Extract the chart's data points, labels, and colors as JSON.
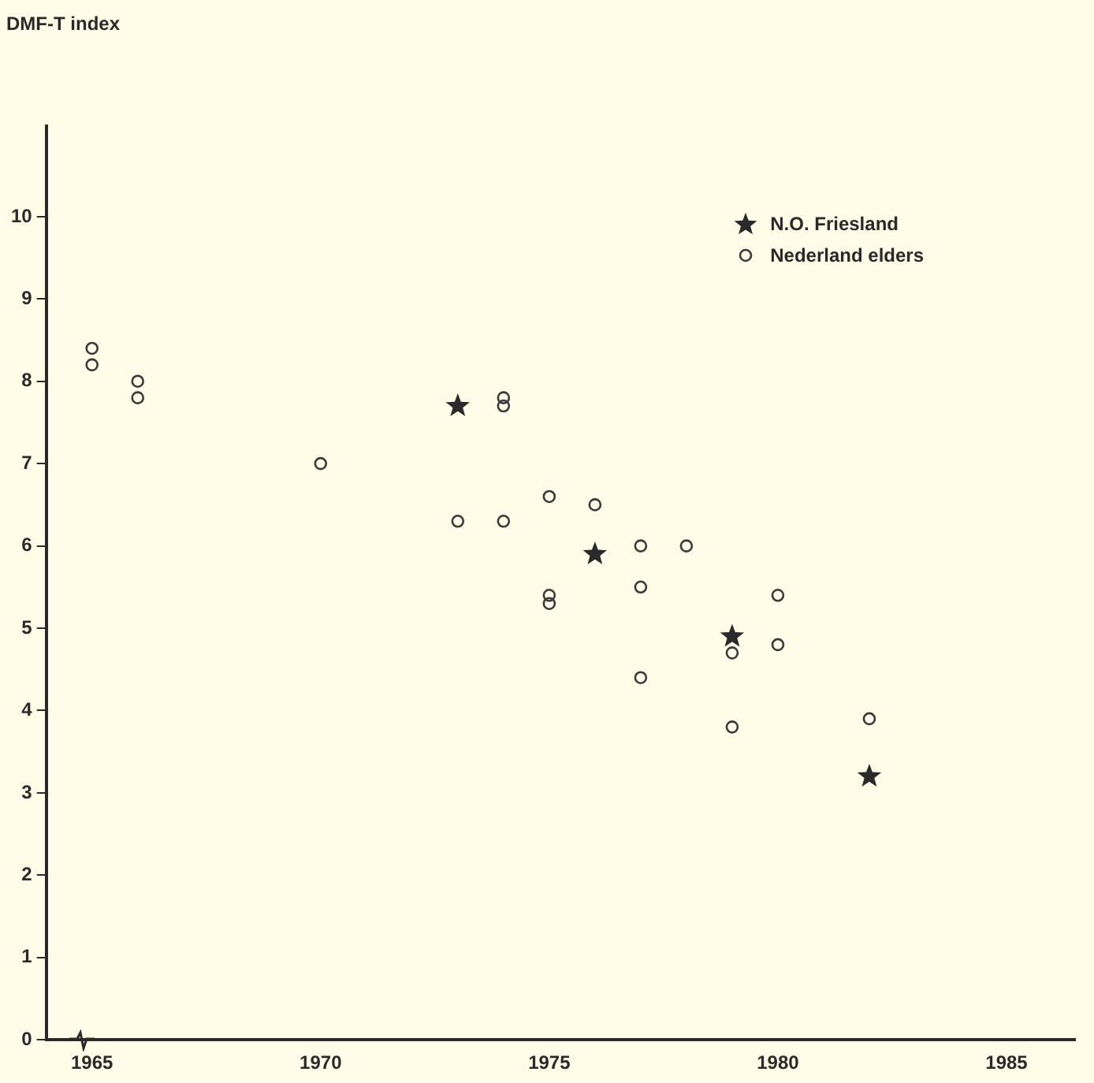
{
  "chart_data": {
    "type": "scatter",
    "ylabel": "DMF-T index",
    "xlim": [
      1964,
      1986.5
    ],
    "xticks": [
      1965,
      1970,
      1975,
      1980,
      1985
    ],
    "ylim": [
      0,
      11.1
    ],
    "yticks": [
      0,
      1,
      2,
      3,
      4,
      5,
      6,
      7,
      8,
      9,
      10
    ],
    "grid": false,
    "legend": "top right",
    "series": [
      {
        "name": "N.O. Friesland",
        "color": "#2a2a2a",
        "marker": "star",
        "x": [
          1973,
          1976,
          1979,
          1982
        ],
        "values": [
          7.7,
          5.9,
          4.9,
          3.2
        ]
      },
      {
        "name": "Nederland elders",
        "color": "#3a3a3a",
        "marker": "circle",
        "x": [
          1965,
          1965,
          1966,
          1966,
          1970,
          1973,
          1974,
          1974,
          1974,
          1975,
          1975,
          1975,
          1976,
          1977,
          1977,
          1977,
          1978,
          1979,
          1979,
          1980,
          1980,
          1982
        ],
        "values": [
          8.4,
          8.2,
          8.0,
          7.8,
          7.0,
          6.3,
          7.8,
          7.7,
          6.3,
          6.6,
          5.4,
          5.3,
          6.5,
          6.0,
          5.5,
          4.4,
          6.0,
          4.7,
          3.8,
          5.4,
          4.8,
          3.9
        ]
      }
    ]
  }
}
